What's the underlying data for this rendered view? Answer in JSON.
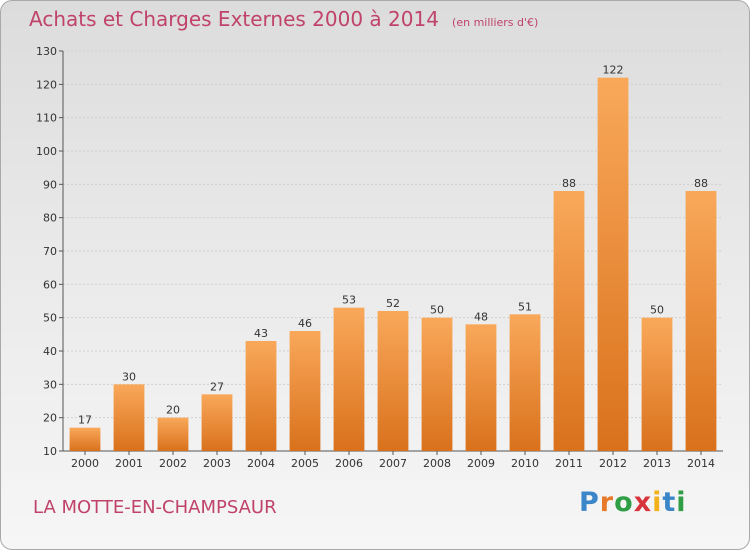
{
  "title": "Achats et Charges Externes 2000 à 2014",
  "subtitle": "(en milliers d'€)",
  "commune": "LA MOTTE-EN-CHAMPSAUR",
  "logo": {
    "letters": [
      "P",
      "r",
      "o",
      "x",
      "i",
      "t",
      "i"
    ],
    "colors": [
      "#3a86c8",
      "#e8792b",
      "#2f9e44",
      "#d8343b",
      "#f2b21b",
      "#3a86c8",
      "#2f9e44"
    ]
  },
  "colors": {
    "title": "#c0436a",
    "bar_top": "#f9a85a",
    "bar_bottom": "#d9711c",
    "grid": "#cfcfcf"
  },
  "chart_data": {
    "type": "bar",
    "categories": [
      "2000",
      "2001",
      "2002",
      "2003",
      "2004",
      "2005",
      "2006",
      "2007",
      "2008",
      "2009",
      "2010",
      "2011",
      "2012",
      "2013",
      "2014"
    ],
    "values": [
      17,
      30,
      20,
      27,
      43,
      46,
      53,
      52,
      50,
      48,
      51,
      88,
      122,
      50,
      88
    ],
    "yticks": [
      10,
      20,
      30,
      40,
      50,
      60,
      70,
      80,
      90,
      100,
      110,
      120,
      130
    ],
    "ylim": [
      10,
      130
    ],
    "grid": true,
    "legend": "none"
  }
}
